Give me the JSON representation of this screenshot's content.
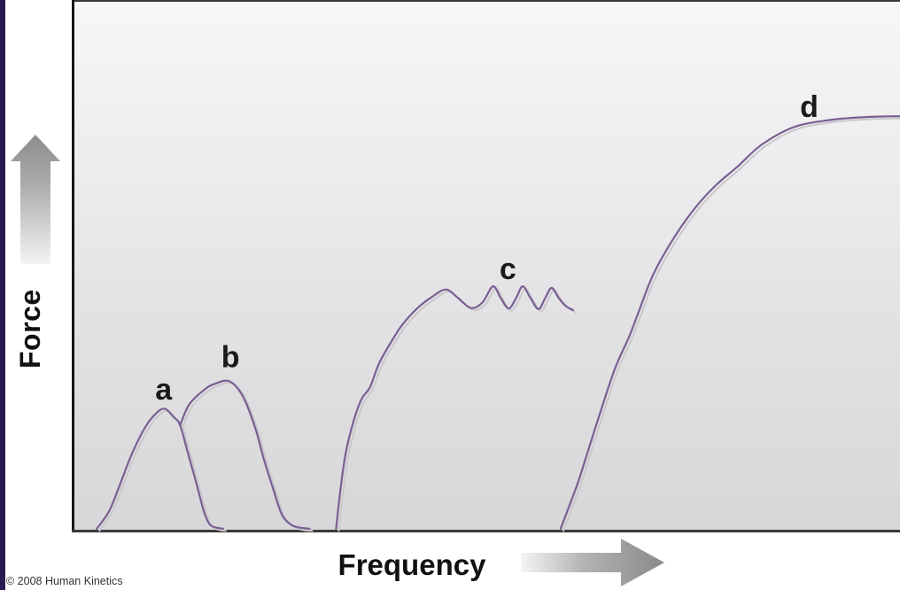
{
  "figure": {
    "y_axis_label": "Force",
    "x_axis_label": "Frequency",
    "copyright": "© 2008 Human Kinetics"
  },
  "colors": {
    "accent_bar": "#2a1a52",
    "curve": "#7a5f92",
    "curve_shadow": "#c9c8cd",
    "axis": "#1a1a1a",
    "letter_text": "#1a1a1a",
    "arrow_dark": "#8c8c8c",
    "arrow_light": "#f2f2f2",
    "plot_bg_top": "#f7f7f8",
    "plot_bg_bottom": "#d7d7d9"
  },
  "chart_data": {
    "type": "line",
    "title": "",
    "xlabel": "Frequency",
    "ylabel": "Force",
    "grid": false,
    "legend": "none",
    "x_axis": {
      "numeric_ticks": false,
      "range_norm": [
        0,
        100
      ],
      "arrow_direction": "right"
    },
    "y_axis": {
      "numeric_ticks": false,
      "range_norm": [
        0,
        100
      ],
      "arrow_direction": "up"
    },
    "series": [
      {
        "name": "a",
        "label": "a",
        "label_pos": {
          "x": 10.8,
          "y": 26.5
        },
        "points": [
          [
            2.7,
            0.2
          ],
          [
            4.2,
            3.5
          ],
          [
            5.5,
            8.5
          ],
          [
            7.0,
            14.5
          ],
          [
            8.6,
            19.5
          ],
          [
            10.0,
            22.2
          ],
          [
            11.0,
            22.9
          ],
          [
            12.0,
            21.4
          ],
          [
            12.8,
            19.8
          ],
          [
            13.7,
            14.8
          ],
          [
            14.7,
            9.2
          ],
          [
            15.7,
            3.4
          ],
          [
            16.4,
            1.0
          ],
          [
            17.2,
            0.4
          ],
          [
            18.0,
            0.2
          ]
        ]
      },
      {
        "name": "b",
        "label": "b",
        "label_pos": {
          "x": 18.9,
          "y": 32.6
        },
        "points": [
          [
            12.8,
            19.8
          ],
          [
            13.9,
            23.7
          ],
          [
            15.8,
            26.6
          ],
          [
            17.1,
            27.7
          ],
          [
            18.8,
            28.1
          ],
          [
            20.4,
            25.3
          ],
          [
            21.9,
            19.3
          ],
          [
            22.9,
            13.6
          ],
          [
            24.0,
            8.1
          ],
          [
            25.1,
            3.0
          ],
          [
            26.2,
            1.0
          ],
          [
            27.3,
            0.4
          ],
          [
            28.5,
            0.2
          ]
        ]
      },
      {
        "name": "c",
        "label": "c",
        "label_pos": {
          "x": 52.5,
          "y": 49.3
        },
        "points": [
          [
            31.7,
            0.2
          ],
          [
            32.1,
            6.0
          ],
          [
            32.8,
            14.0
          ],
          [
            33.8,
            20.5
          ],
          [
            34.8,
            24.8
          ],
          [
            35.8,
            27.0
          ],
          [
            36.9,
            31.5
          ],
          [
            38.3,
            35.4
          ],
          [
            39.7,
            38.8
          ],
          [
            41.5,
            41.9
          ],
          [
            43.3,
            44.1
          ],
          [
            45.0,
            45.5
          ],
          [
            46.4,
            44.0
          ],
          [
            48.0,
            42.0
          ],
          [
            49.4,
            43.0
          ],
          [
            50.7,
            46.1
          ],
          [
            51.6,
            44.0
          ],
          [
            52.6,
            41.9
          ],
          [
            53.5,
            43.9
          ],
          [
            54.3,
            46.1
          ],
          [
            55.2,
            44.0
          ],
          [
            56.2,
            41.8
          ],
          [
            57.0,
            43.8
          ],
          [
            57.8,
            45.8
          ],
          [
            58.7,
            43.8
          ],
          [
            59.5,
            42.4
          ],
          [
            60.4,
            41.6
          ]
        ]
      },
      {
        "name": "d",
        "label": "d",
        "label_pos": {
          "x": 89.0,
          "y": 80.0
        },
        "points": [
          [
            58.9,
            0.2
          ],
          [
            60.8,
            8.1
          ],
          [
            61.5,
            11.4
          ],
          [
            63.2,
            19.8
          ],
          [
            65.4,
            30.2
          ],
          [
            67.2,
            36.6
          ],
          [
            68.3,
            41.1
          ],
          [
            70.1,
            48.3
          ],
          [
            72.5,
            55.0
          ],
          [
            75.0,
            60.6
          ],
          [
            77.6,
            65.1
          ],
          [
            80.4,
            68.9
          ],
          [
            83.3,
            73.0
          ],
          [
            87.2,
            76.3
          ],
          [
            91.5,
            77.6
          ],
          [
            95.1,
            78.1
          ],
          [
            98.6,
            78.3
          ],
          [
            100.0,
            78.3
          ]
        ]
      }
    ]
  }
}
